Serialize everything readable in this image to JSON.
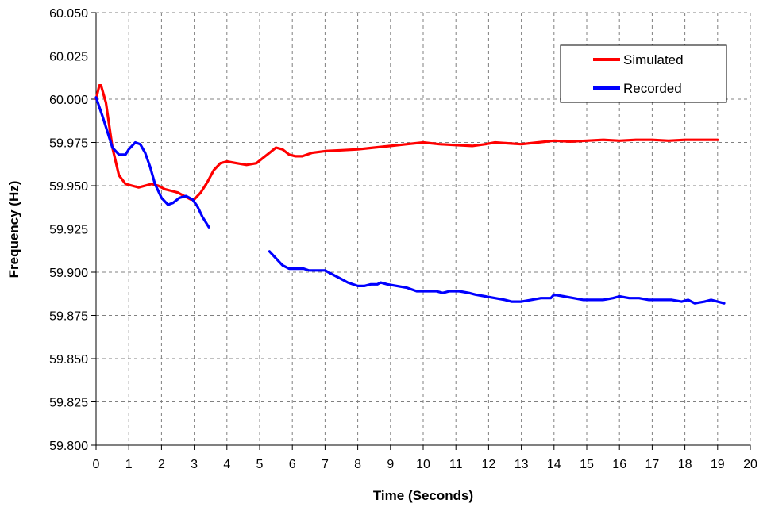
{
  "chart_data": {
    "type": "line",
    "title": "",
    "xlabel": "Time (Seconds)",
    "ylabel": "Frequency (Hz)",
    "xlim": [
      0,
      20
    ],
    "ylim": [
      59.8,
      60.05
    ],
    "x_ticks": [
      "0",
      "1",
      "2",
      "3",
      "4",
      "5",
      "6",
      "7",
      "8",
      "9",
      "10",
      "11",
      "12",
      "13",
      "14",
      "15",
      "16",
      "17",
      "18",
      "19",
      "20"
    ],
    "y_ticks": [
      "59.800",
      "59.825",
      "59.850",
      "59.875",
      "59.900",
      "59.925",
      "59.950",
      "59.975",
      "60.000",
      "60.025",
      "60.050"
    ],
    "grid": true,
    "legend": "top-right",
    "series": [
      {
        "name": "Simulated",
        "color": "#ff0000",
        "points": [
          [
            0,
            60.0
          ],
          [
            0.1,
            60.008
          ],
          [
            0.15,
            60.008
          ],
          [
            0.3,
            59.998
          ],
          [
            0.5,
            59.972
          ],
          [
            0.7,
            59.956
          ],
          [
            0.9,
            59.951
          ],
          [
            1.1,
            59.95
          ],
          [
            1.3,
            59.949
          ],
          [
            1.5,
            59.95
          ],
          [
            1.7,
            59.951
          ],
          [
            1.9,
            59.95
          ],
          [
            2.1,
            59.948
          ],
          [
            2.3,
            59.947
          ],
          [
            2.5,
            59.946
          ],
          [
            2.7,
            59.944
          ],
          [
            2.9,
            59.942
          ],
          [
            3.0,
            59.942
          ],
          [
            3.2,
            59.946
          ],
          [
            3.4,
            59.952
          ],
          [
            3.6,
            59.959
          ],
          [
            3.8,
            59.963
          ],
          [
            4.0,
            59.964
          ],
          [
            4.3,
            59.963
          ],
          [
            4.6,
            59.962
          ],
          [
            4.9,
            59.963
          ],
          [
            5.1,
            59.966
          ],
          [
            5.3,
            59.969
          ],
          [
            5.5,
            59.972
          ],
          [
            5.7,
            59.971
          ],
          [
            5.9,
            59.968
          ],
          [
            6.1,
            59.967
          ],
          [
            6.3,
            59.967
          ],
          [
            6.6,
            59.969
          ],
          [
            7.0,
            59.97
          ],
          [
            7.5,
            59.9705
          ],
          [
            8.0,
            59.971
          ],
          [
            8.5,
            59.972
          ],
          [
            9.0,
            59.973
          ],
          [
            9.5,
            59.974
          ],
          [
            10.0,
            59.975
          ],
          [
            10.5,
            59.974
          ],
          [
            11.0,
            59.9735
          ],
          [
            11.5,
            59.973
          ],
          [
            11.9,
            59.974
          ],
          [
            12.2,
            59.975
          ],
          [
            12.6,
            59.9745
          ],
          [
            13.0,
            59.974
          ],
          [
            13.5,
            59.975
          ],
          [
            14.0,
            59.976
          ],
          [
            14.5,
            59.9755
          ],
          [
            15.0,
            59.976
          ],
          [
            15.5,
            59.9765
          ],
          [
            16.0,
            59.976
          ],
          [
            16.5,
            59.9765
          ],
          [
            17.0,
            59.9765
          ],
          [
            17.5,
            59.976
          ],
          [
            18.0,
            59.9765
          ],
          [
            18.5,
            59.9765
          ],
          [
            19.0,
            59.9765
          ]
        ]
      },
      {
        "name": "Recorded",
        "color": "#0000ff",
        "segments": [
          [
            [
              0,
              60.001
            ],
            [
              0.2,
              59.99
            ],
            [
              0.4,
              59.978
            ],
            [
              0.5,
              59.972
            ],
            [
              0.7,
              59.968
            ],
            [
              0.9,
              59.968
            ],
            [
              1.0,
              59.971
            ],
            [
              1.2,
              59.975
            ],
            [
              1.35,
              59.974
            ],
            [
              1.5,
              59.969
            ],
            [
              1.65,
              59.961
            ],
            [
              1.8,
              59.951
            ],
            [
              2.0,
              59.943
            ],
            [
              2.2,
              59.939
            ],
            [
              2.35,
              59.94
            ],
            [
              2.55,
              59.943
            ],
            [
              2.75,
              59.944
            ],
            [
              2.95,
              59.942
            ],
            [
              3.1,
              59.938
            ],
            [
              3.25,
              59.932
            ],
            [
              3.45,
              59.926
            ]
          ],
          [
            [
              5.3,
              59.912
            ],
            [
              5.5,
              59.908
            ],
            [
              5.7,
              59.904
            ],
            [
              5.9,
              59.902
            ],
            [
              6.1,
              59.902
            ],
            [
              6.35,
              59.902
            ],
            [
              6.5,
              59.901
            ],
            [
              6.8,
              59.901
            ],
            [
              7.0,
              59.901
            ],
            [
              7.2,
              59.899
            ],
            [
              7.5,
              59.896
            ],
            [
              7.7,
              59.894
            ],
            [
              8.0,
              59.892
            ],
            [
              8.2,
              59.892
            ],
            [
              8.4,
              59.893
            ],
            [
              8.6,
              59.893
            ],
            [
              8.7,
              59.894
            ],
            [
              8.9,
              59.893
            ],
            [
              9.2,
              59.892
            ],
            [
              9.5,
              59.891
            ],
            [
              9.8,
              59.889
            ],
            [
              10.0,
              59.889
            ],
            [
              10.4,
              59.889
            ],
            [
              10.6,
              59.888
            ],
            [
              10.8,
              59.889
            ],
            [
              11.1,
              59.889
            ],
            [
              11.4,
              59.888
            ],
            [
              11.6,
              59.887
            ],
            [
              11.9,
              59.886
            ],
            [
              12.2,
              59.885
            ],
            [
              12.5,
              59.884
            ],
            [
              12.7,
              59.883
            ],
            [
              13.0,
              59.883
            ],
            [
              13.3,
              59.884
            ],
            [
              13.6,
              59.885
            ],
            [
              13.9,
              59.885
            ],
            [
              14.0,
              59.887
            ],
            [
              14.3,
              59.886
            ],
            [
              14.6,
              59.885
            ],
            [
              14.9,
              59.884
            ],
            [
              15.2,
              59.884
            ],
            [
              15.5,
              59.884
            ],
            [
              15.8,
              59.885
            ],
            [
              16.0,
              59.886
            ],
            [
              16.3,
              59.885
            ],
            [
              16.6,
              59.885
            ],
            [
              16.9,
              59.884
            ],
            [
              17.3,
              59.884
            ],
            [
              17.6,
              59.884
            ],
            [
              17.9,
              59.883
            ],
            [
              18.1,
              59.884
            ],
            [
              18.3,
              59.882
            ],
            [
              18.6,
              59.883
            ],
            [
              18.8,
              59.884
            ],
            [
              19.0,
              59.883
            ],
            [
              19.2,
              59.882
            ]
          ]
        ]
      }
    ]
  }
}
